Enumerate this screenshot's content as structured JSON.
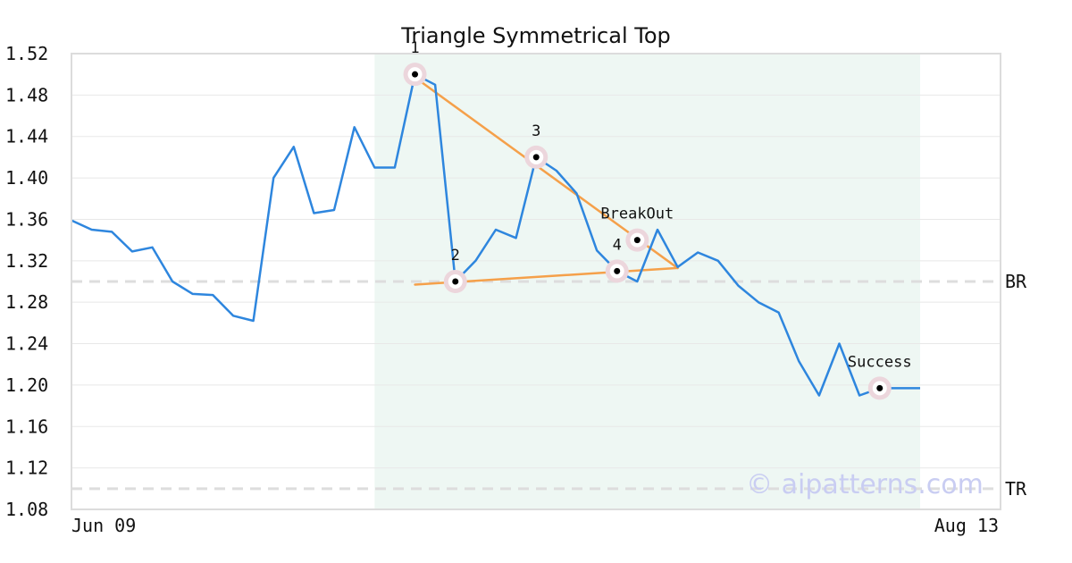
{
  "chart_data": {
    "type": "line",
    "title": "Triangle Symmetrical Top",
    "xlabel": "",
    "ylabel": "",
    "ylim": [
      1.08,
      1.52
    ],
    "yticks": [
      "1.52",
      "1.48",
      "1.44",
      "1.40",
      "1.36",
      "1.32",
      "1.28",
      "1.24",
      "1.20",
      "1.16",
      "1.12",
      "1.08"
    ],
    "x_tick_labels": [
      "Jun 09",
      "Aug 13"
    ],
    "grid": true,
    "series": [
      {
        "values": [
          1.359,
          1.35,
          1.348,
          1.329,
          1.333,
          1.3,
          1.288,
          1.287,
          1.267,
          1.262,
          1.4,
          1.43,
          1.366,
          1.369,
          1.449,
          1.41,
          1.41,
          1.5,
          1.49,
          1.3,
          1.32,
          1.35,
          1.342,
          1.42,
          1.407,
          1.385,
          1.33,
          1.31,
          1.3,
          1.35,
          1.314,
          1.328,
          1.32,
          1.296,
          1.28,
          1.27,
          1.223,
          1.19,
          1.24,
          1.19,
          1.197,
          1.197,
          1.197
        ]
      }
    ],
    "highlight_range": {
      "start_index": 15,
      "end_index": 42
    },
    "trendlines": [
      {
        "from": [
          17,
          1.497
        ],
        "to": [
          30,
          1.313
        ]
      },
      {
        "from": [
          17,
          1.297
        ],
        "to": [
          30,
          1.313
        ]
      }
    ],
    "pivots": [
      {
        "label": "1",
        "index": 17,
        "value": 1.5
      },
      {
        "label": "2",
        "index": 19,
        "value": 1.3
      },
      {
        "label": "3",
        "index": 23,
        "value": 1.42
      },
      {
        "label": "4",
        "index": 27,
        "value": 1.31
      },
      {
        "label": "BreakOut",
        "index": 28,
        "value": 1.34
      },
      {
        "label": "Success",
        "index": 40,
        "value": 1.197
      }
    ],
    "reference_lines": [
      {
        "label": "BR",
        "value": 1.3
      },
      {
        "label": "TR",
        "value": 1.1
      }
    ],
    "watermark": "© aipatterns.com",
    "colors": {
      "price_line": "#2e86de",
      "trendline": "#f5a04a",
      "highlight": "#eef7f3",
      "reference": "#dddddd",
      "grid": "#e8e8e8",
      "frame": "#dcdcdc",
      "marker_halo": "#ecd6dc",
      "marker_dot": "#000000"
    }
  }
}
